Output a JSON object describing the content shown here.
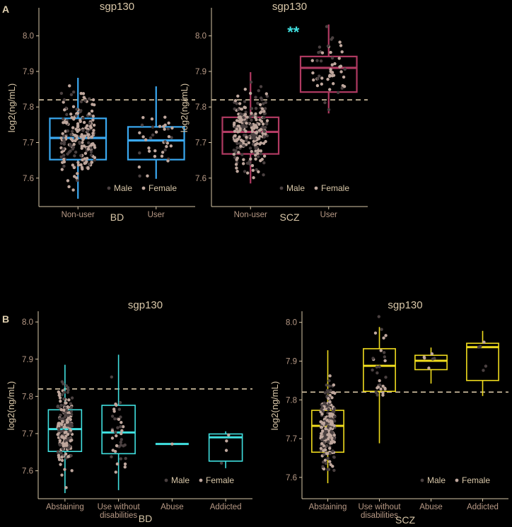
{
  "colors": {
    "background": "#000000",
    "axis": "#d9c7a8",
    "text": "#d9c7a8",
    "title": "#d9c7a8",
    "tick_label": "#b89a86",
    "reference_line": "#d8c6a6",
    "male_point": "#4a4040",
    "female_point": "#bfa79d",
    "star": "#40e0e0"
  },
  "panel_labels": {
    "a": "A",
    "b": "B"
  },
  "chart_data": [
    {
      "id": "a1",
      "type": "box",
      "title": "sgp130",
      "xlabel": "BD",
      "ylabel": "log2(ng/mL)",
      "ylim": [
        7.52,
        8.075
      ],
      "yticks": [
        7.6,
        7.7,
        7.8,
        7.9,
        8.0
      ],
      "ytick_labels": [
        "7.6",
        "7.7",
        "7.8",
        "7.9",
        "8.0"
      ],
      "reference_line": 7.82,
      "box_color": "#3aa8f0",
      "legend": [
        "Male",
        "Female"
      ],
      "legend_position": "bottom-right",
      "categories": [
        {
          "label": "Non-user",
          "q1": 7.652,
          "median": 7.713,
          "q3": 7.768,
          "whisker_low": 7.542,
          "whisker_high": 7.882,
          "n": 210
        },
        {
          "label": "User",
          "q1": 7.652,
          "median": 7.706,
          "q3": 7.744,
          "whisker_low": 7.598,
          "whisker_high": 7.858,
          "n": 38
        }
      ],
      "annotation": ""
    },
    {
      "id": "a2",
      "type": "box",
      "title": "sgp130",
      "xlabel": "SCZ",
      "ylabel": "log2(ng/mL)",
      "ylim": [
        7.52,
        8.075
      ],
      "yticks": [
        7.6,
        7.7,
        7.8,
        7.9,
        8.0
      ],
      "ytick_labels": [
        "7.6",
        "7.7",
        "7.8",
        "7.9",
        "8.0"
      ],
      "reference_line": 7.82,
      "box_color": "#b03a62",
      "legend": [
        "Male",
        "Female"
      ],
      "legend_position": "bottom-right",
      "categories": [
        {
          "label": "Non-user",
          "q1": 7.668,
          "median": 7.73,
          "q3": 7.771,
          "whisker_low": 7.585,
          "whisker_high": 7.898,
          "n": 260
        },
        {
          "label": "User",
          "q1": 7.842,
          "median": 7.91,
          "q3": 7.942,
          "whisker_low": 7.782,
          "whisker_high": 8.032,
          "n": 50
        }
      ],
      "annotation": "**"
    },
    {
      "id": "b1",
      "type": "box",
      "title": "sgp130",
      "xlabel": "BD",
      "ylabel": "log2(ng/mL)",
      "ylim": [
        7.525,
        8.025
      ],
      "yticks": [
        7.6,
        7.7,
        7.8,
        7.9,
        8.0
      ],
      "ytick_labels": [
        "7.6",
        "7.7",
        "7.8",
        "7.9",
        "8.0"
      ],
      "reference_line": 7.82,
      "box_color": "#40e0e0",
      "legend": [
        "Male",
        "Female"
      ],
      "legend_position": "bottom-right",
      "categories": [
        {
          "label": "Abstaining",
          "q1": 7.652,
          "median": 7.712,
          "q3": 7.764,
          "whisker_low": 7.54,
          "whisker_high": 7.885,
          "n": 190
        },
        {
          "label": "Use without disabilities",
          "q1": 7.646,
          "median": 7.703,
          "q3": 7.776,
          "whisker_low": 7.548,
          "whisker_high": 7.912,
          "n": 40
        },
        {
          "label": "Abuse",
          "q1": 7.672,
          "median": 7.672,
          "q3": 7.672,
          "whisker_low": 7.672,
          "whisker_high": 7.672,
          "n": 1
        },
        {
          "label": "Addicted",
          "q1": 7.626,
          "median": 7.69,
          "q3": 7.699,
          "whisker_low": 7.607,
          "whisker_high": 7.706,
          "n": 4
        }
      ],
      "annotation": ""
    },
    {
      "id": "b2",
      "type": "box",
      "title": "sgp130",
      "xlabel": "SCZ",
      "ylabel": "log2(ng/mL)",
      "ylim": [
        7.545,
        8.025
      ],
      "yticks": [
        7.6,
        7.7,
        7.8,
        7.9,
        8.0
      ],
      "ytick_labels": [
        "7.6",
        "7.7",
        "7.8",
        "7.9",
        "8.0"
      ],
      "reference_line": 7.82,
      "box_color": "#f0dc1e",
      "legend": [
        "Male",
        "Female"
      ],
      "legend_position": "bottom-right",
      "categories": [
        {
          "label": "Abstaining",
          "q1": 7.665,
          "median": 7.733,
          "q3": 7.773,
          "whisker_low": 7.585,
          "whisker_high": 7.928,
          "n": 230
        },
        {
          "label": "Use without disabilities",
          "q1": 7.822,
          "median": 7.888,
          "q3": 7.932,
          "whisker_low": 7.688,
          "whisker_high": 7.988,
          "n": 30
        },
        {
          "label": "Abuse",
          "q1": 7.878,
          "median": 7.901,
          "q3": 7.915,
          "whisker_low": 7.842,
          "whisker_high": 7.935,
          "n": 6
        },
        {
          "label": "Addicted",
          "q1": 7.85,
          "median": 7.936,
          "q3": 7.946,
          "whisker_low": 7.81,
          "whisker_high": 7.978,
          "n": 5
        }
      ],
      "annotation": ""
    }
  ]
}
